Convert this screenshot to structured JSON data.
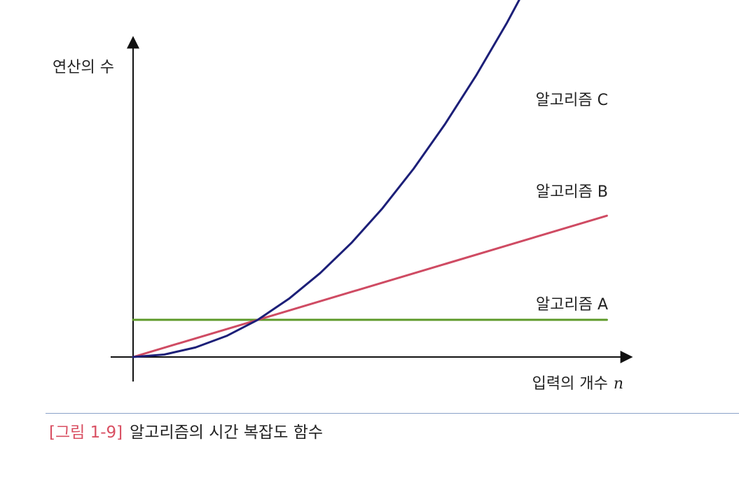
{
  "chart_data": {
    "type": "line",
    "ylabel": "연산의 수",
    "xlabel": "입력의 개수",
    "xlabel_var": "n",
    "grid": false,
    "series": [
      {
        "name": "알고리즘 A",
        "color": "#5e9a2a",
        "points": [
          [
            0,
            0.9
          ],
          [
            1,
            0.9
          ],
          [
            2,
            0.9
          ],
          [
            3,
            0.9
          ],
          [
            3.8,
            0.9
          ]
        ]
      },
      {
        "name": "알고리즘 B",
        "color": "#cf4b63",
        "points": [
          [
            0,
            0
          ],
          [
            1,
            0.9
          ],
          [
            2,
            1.8
          ],
          [
            3,
            2.7
          ],
          [
            3.8,
            3.42
          ]
        ]
      },
      {
        "name": "알고리즘 C",
        "color": "#1c1f78",
        "points": [
          [
            0,
            0
          ],
          [
            0.25,
            0.06
          ],
          [
            0.5,
            0.23
          ],
          [
            0.75,
            0.51
          ],
          [
            1,
            0.9
          ],
          [
            1.25,
            1.41
          ],
          [
            1.5,
            2.03
          ],
          [
            1.75,
            2.76
          ],
          [
            2,
            3.6
          ],
          [
            2.25,
            4.56
          ],
          [
            2.5,
            5.63
          ],
          [
            2.75,
            6.81
          ],
          [
            3,
            8.1
          ],
          [
            3.25,
            9.51
          ],
          [
            3.45,
            10.71
          ]
        ]
      }
    ]
  },
  "caption": {
    "figure_number": "[그림 1-9]",
    "text": "알고리즘의 시간 복잡도 함수"
  }
}
